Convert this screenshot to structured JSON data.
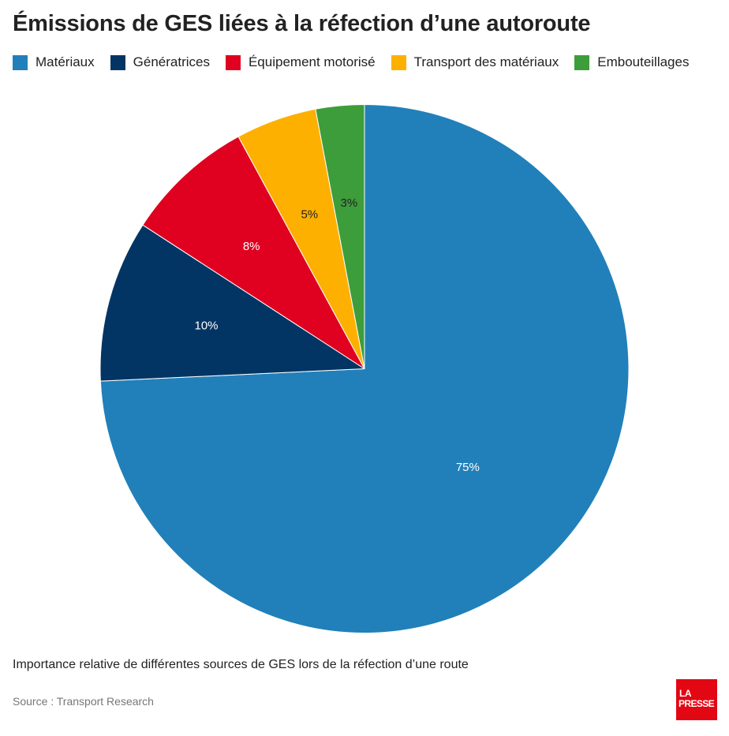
{
  "title": "Émissions de GES liées à la réfection d’une autoroute",
  "caption": "Importance relative de différentes sources de GES lors de la réfection d’une route",
  "source": "Source : Transport Research",
  "logo": {
    "line1": "LA",
    "line2": "PRESSE",
    "color": "#e30613"
  },
  "chart_data": {
    "type": "pie",
    "legend_position": "top",
    "slices": [
      {
        "label": "Matériaux",
        "value": 75,
        "display": "75%",
        "color": "#2180b9"
      },
      {
        "label": "Génératrices",
        "value": 10,
        "display": "10%",
        "color": "#023564"
      },
      {
        "label": "Équipement motorisé",
        "value": 8,
        "display": "8%",
        "color": "#e0001f"
      },
      {
        "label": "Transport des matériaux",
        "value": 5,
        "display": "5%",
        "color": "#fdb000"
      },
      {
        "label": "Embouteillages",
        "value": 3,
        "display": "3%",
        "color": "#3d9d3a"
      }
    ]
  }
}
